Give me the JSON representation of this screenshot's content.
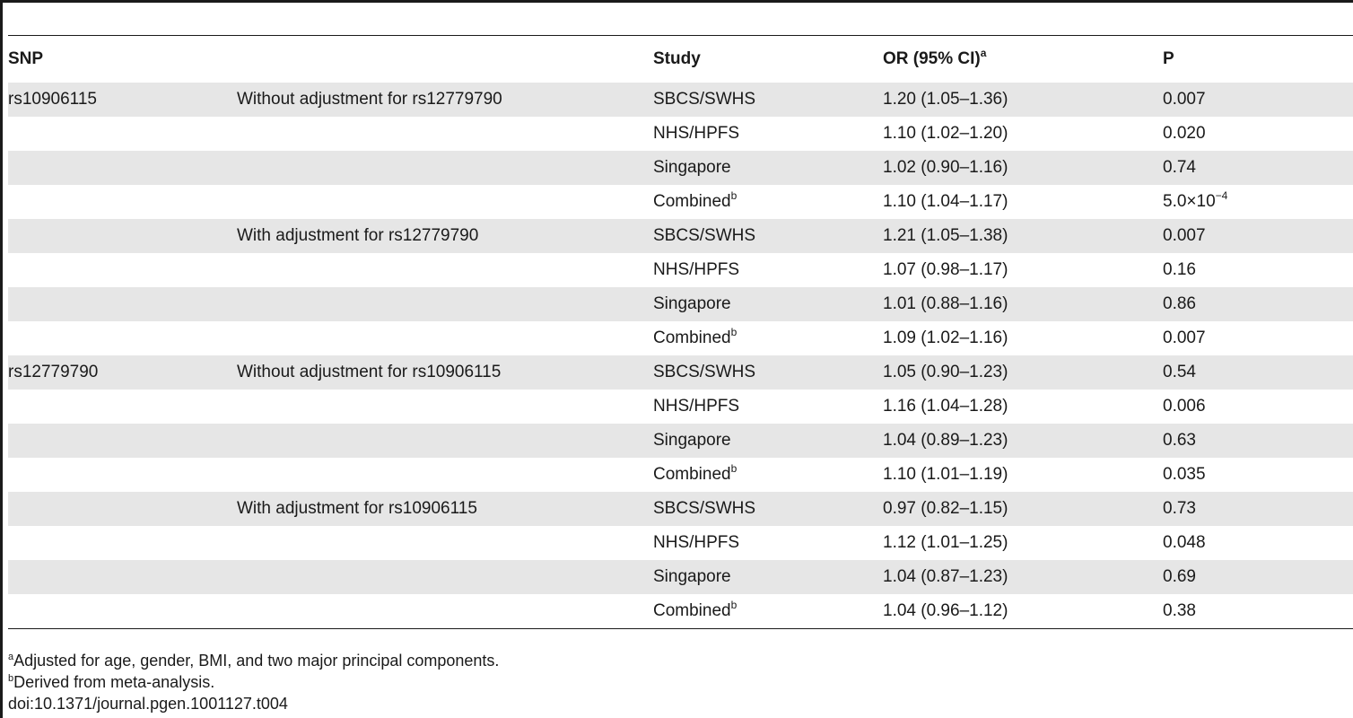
{
  "table": {
    "headers": {
      "snp": "SNP",
      "adjustment": "",
      "study": "Study",
      "or": "OR (95% CI)",
      "or_sup": "a",
      "p": "P"
    },
    "rows": [
      {
        "snp": "rs10906115",
        "adjustment": "Without adjustment for rs12779790",
        "study": "SBCS/SWHS",
        "study_sup": "",
        "or": "1.20 (1.05–1.36)",
        "p": "0.007",
        "p_sup": ""
      },
      {
        "snp": "",
        "adjustment": "",
        "study": "NHS/HPFS",
        "study_sup": "",
        "or": "1.10 (1.02–1.20)",
        "p": "0.020",
        "p_sup": ""
      },
      {
        "snp": "",
        "adjustment": "",
        "study": "Singapore",
        "study_sup": "",
        "or": "1.02 (0.90–1.16)",
        "p": "0.74",
        "p_sup": ""
      },
      {
        "snp": "",
        "adjustment": "",
        "study": "Combined",
        "study_sup": "b",
        "or": "1.10 (1.04–1.17)",
        "p": "5.0×10",
        "p_sup": "−4"
      },
      {
        "snp": "",
        "adjustment": "With adjustment for rs12779790",
        "study": "SBCS/SWHS",
        "study_sup": "",
        "or": "1.21 (1.05–1.38)",
        "p": "0.007",
        "p_sup": ""
      },
      {
        "snp": "",
        "adjustment": "",
        "study": "NHS/HPFS",
        "study_sup": "",
        "or": "1.07 (0.98–1.17)",
        "p": "0.16",
        "p_sup": ""
      },
      {
        "snp": "",
        "adjustment": "",
        "study": "Singapore",
        "study_sup": "",
        "or": "1.01 (0.88–1.16)",
        "p": "0.86",
        "p_sup": ""
      },
      {
        "snp": "",
        "adjustment": "",
        "study": "Combined",
        "study_sup": "b",
        "or": "1.09 (1.02–1.16)",
        "p": "0.007",
        "p_sup": ""
      },
      {
        "snp": "rs12779790",
        "adjustment": "Without adjustment for rs10906115",
        "study": "SBCS/SWHS",
        "study_sup": "",
        "or": "1.05 (0.90–1.23)",
        "p": "0.54",
        "p_sup": ""
      },
      {
        "snp": "",
        "adjustment": "",
        "study": "NHS/HPFS",
        "study_sup": "",
        "or": "1.16 (1.04–1.28)",
        "p": "0.006",
        "p_sup": ""
      },
      {
        "snp": "",
        "adjustment": "",
        "study": "Singapore",
        "study_sup": "",
        "or": "1.04 (0.89–1.23)",
        "p": "0.63",
        "p_sup": ""
      },
      {
        "snp": "",
        "adjustment": "",
        "study": "Combined",
        "study_sup": "b",
        "or": "1.10 (1.01–1.19)",
        "p": "0.035",
        "p_sup": ""
      },
      {
        "snp": "",
        "adjustment": "With adjustment for rs10906115",
        "study": "SBCS/SWHS",
        "study_sup": "",
        "or": "0.97 (0.82–1.15)",
        "p": "0.73",
        "p_sup": ""
      },
      {
        "snp": "",
        "adjustment": "",
        "study": "NHS/HPFS",
        "study_sup": "",
        "or": "1.12 (1.01–1.25)",
        "p": "0.048",
        "p_sup": ""
      },
      {
        "snp": "",
        "adjustment": "",
        "study": "Singapore",
        "study_sup": "",
        "or": "1.04 (0.87–1.23)",
        "p": "0.69",
        "p_sup": ""
      },
      {
        "snp": "",
        "adjustment": "",
        "study": "Combined",
        "study_sup": "b",
        "or": "1.04 (0.96–1.12)",
        "p": "0.38",
        "p_sup": ""
      }
    ]
  },
  "footnotes": {
    "a_mark": "a",
    "a_text": "Adjusted for age, gender, BMI, and two major principal components.",
    "b_mark": "b",
    "b_text": "Derived from meta-analysis.",
    "doi": "doi:10.1371/journal.pgen.1001127.t004"
  },
  "colors": {
    "shaded_row": "#e6e6e6",
    "rule": "#1a1a1a",
    "text": "#1a1a1a"
  }
}
